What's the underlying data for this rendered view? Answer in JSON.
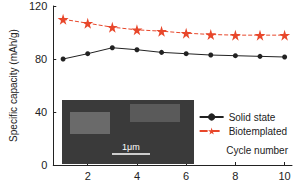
{
  "chart_data": {
    "type": "line",
    "x_label": "Cycle number",
    "y_label": "Specific capacity (mAh/g)",
    "x": [
      1,
      2,
      3,
      4,
      5,
      6,
      7,
      8,
      9,
      10
    ],
    "series": [
      {
        "name": "Solid state",
        "color": "#222222",
        "marker": "circle",
        "line_style": "solid",
        "values": [
          80,
          84,
          88.5,
          87,
          85,
          84,
          83,
          82.5,
          82,
          81.5
        ]
      },
      {
        "name": "Biotemplated",
        "color": "#e8472b",
        "marker": "star",
        "line_style": "dashed",
        "values": [
          110,
          107,
          104,
          102,
          101,
          99.5,
          98.5,
          98,
          98,
          98
        ]
      }
    ],
    "xlim": [
      0.6,
      10.3
    ],
    "xticks": [
      2,
      4,
      6,
      8,
      10
    ],
    "ylim": [
      0,
      120
    ],
    "yticks": [
      0,
      40,
      80,
      120
    ],
    "grid": false,
    "legend": "lower right",
    "annotations": [
      "1μm"
    ]
  }
}
